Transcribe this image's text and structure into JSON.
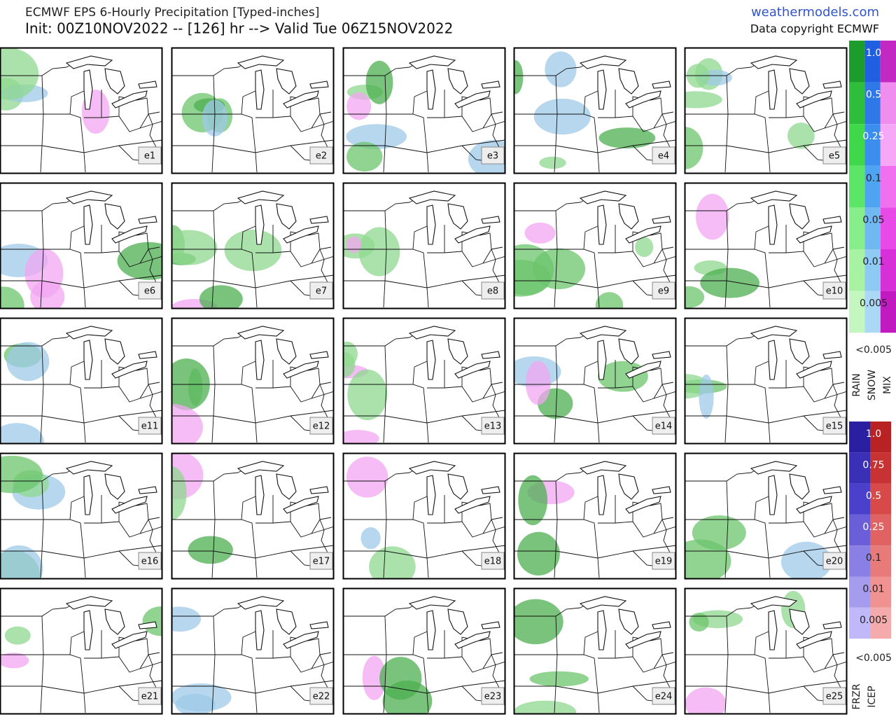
{
  "header": {
    "title": "ECMWF EPS 6-Hourly Precipitation [Typed-inches]",
    "subtitle": "Init: 00Z10NOV2022 -- [126] hr --> Valid Tue 06Z15NOV2022",
    "site": "weathermodels.com",
    "copyright": "Data copyright ECMWF"
  },
  "panels": [
    {
      "label": "e1"
    },
    {
      "label": "e2"
    },
    {
      "label": "e3"
    },
    {
      "label": "e4"
    },
    {
      "label": "e5"
    },
    {
      "label": "e6"
    },
    {
      "label": "e7"
    },
    {
      "label": "e8"
    },
    {
      "label": "e9"
    },
    {
      "label": "e10"
    },
    {
      "label": "e11"
    },
    {
      "label": "e12"
    },
    {
      "label": "e13"
    },
    {
      "label": "e14"
    },
    {
      "label": "e15"
    },
    {
      "label": "e16"
    },
    {
      "label": "e17"
    },
    {
      "label": "e18"
    },
    {
      "label": "e19"
    },
    {
      "label": "e20"
    },
    {
      "label": "e21"
    },
    {
      "label": "e22"
    },
    {
      "label": "e23"
    },
    {
      "label": "e24"
    },
    {
      "label": "e25"
    }
  ],
  "legend_rain": {
    "levels": [
      "1.0",
      "0.5",
      "0.25",
      "0.1",
      "0.05",
      "0.01",
      "0.005"
    ],
    "below": "<0.005",
    "types": [
      "RAIN",
      "SNOW",
      "MIX"
    ],
    "colors": [
      [
        "#1c9c2c",
        "#2fbe3c",
        "#3fd84b",
        "#5ce667",
        "#86ee8a",
        "#a8f2a4",
        "#c4f6c0"
      ],
      [
        "#1f5fe0",
        "#2e78e8",
        "#3b8eee",
        "#4ea4f0",
        "#70b8f2",
        "#8ecaf4",
        "#aad8f6"
      ],
      [
        "#c228c2",
        "#f08ef0",
        "#f6a8f6",
        "#f070f0",
        "#e84ae8",
        "#d830d8",
        "#c01ac0"
      ]
    ]
  },
  "legend_ice": {
    "levels": [
      "1.0",
      "0.75",
      "0.5",
      "0.25",
      "0.1",
      "0.01",
      "0.005"
    ],
    "below": "<0.005",
    "types": [
      "FRZR",
      "ICEP"
    ],
    "colors": [
      [
        "#2a1fa0",
        "#3a30b8",
        "#4a40cc",
        "#6a5fd8",
        "#8a7fe4",
        "#a59cee",
        "#c0b8f8"
      ],
      [
        "#b82222",
        "#c83232",
        "#d84a4a",
        "#e06262",
        "#e87a7a",
        "#f09292",
        "#f5abab"
      ]
    ]
  }
}
